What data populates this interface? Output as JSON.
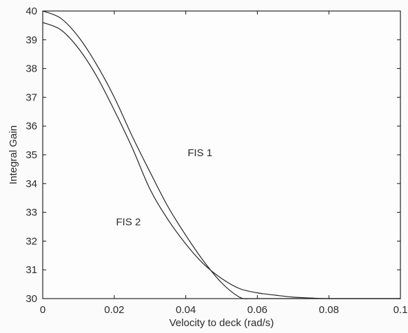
{
  "chart_data": {
    "type": "line",
    "xlabel": "Velocity to deck (rad/s)",
    "ylabel": "Integral Gain",
    "xlim": [
      0,
      0.1
    ],
    "ylim": [
      30,
      40
    ],
    "grid": false,
    "x_ticks": [
      "0",
      "0.02",
      "0.04",
      "0.06",
      "0.08",
      "0.1"
    ],
    "y_ticks": [
      "30",
      "31",
      "32",
      "33",
      "34",
      "35",
      "36",
      "37",
      "38",
      "39",
      "40"
    ],
    "annotations": [
      {
        "text": "FIS 1",
        "x": 0.0405,
        "y": 34.95
      },
      {
        "text": "FIS 2",
        "x": 0.0205,
        "y": 32.55
      }
    ],
    "series": [
      {
        "x": [
          0,
          0.005,
          0.01,
          0.015,
          0.02,
          0.025,
          0.03,
          0.035,
          0.04,
          0.045,
          0.05,
          0.055,
          0.058,
          0.06,
          0.065,
          0.07,
          0.08,
          0.09,
          0.1
        ],
        "y": [
          40.0,
          39.75,
          39.1,
          38.15,
          37.0,
          35.65,
          34.4,
          33.2,
          32.2,
          31.3,
          30.55,
          30.05,
          30.0,
          30.0,
          30.0,
          30.0,
          30.0,
          30.0,
          30.0
        ]
      },
      {
        "x": [
          0,
          0.005,
          0.01,
          0.015,
          0.02,
          0.025,
          0.03,
          0.035,
          0.04,
          0.045,
          0.05,
          0.055,
          0.06,
          0.065,
          0.07,
          0.075,
          0.08,
          0.09,
          0.1
        ],
        "y": [
          39.6,
          39.35,
          38.7,
          37.75,
          36.55,
          35.25,
          33.8,
          32.75,
          31.9,
          31.2,
          30.7,
          30.35,
          30.2,
          30.12,
          30.05,
          30.02,
          30.0,
          30.0,
          30.0
        ]
      }
    ],
    "colors": {
      "line": "#222222",
      "axis": "#111111",
      "text": "#2a2a2a",
      "background": "#fbfbfb"
    }
  }
}
